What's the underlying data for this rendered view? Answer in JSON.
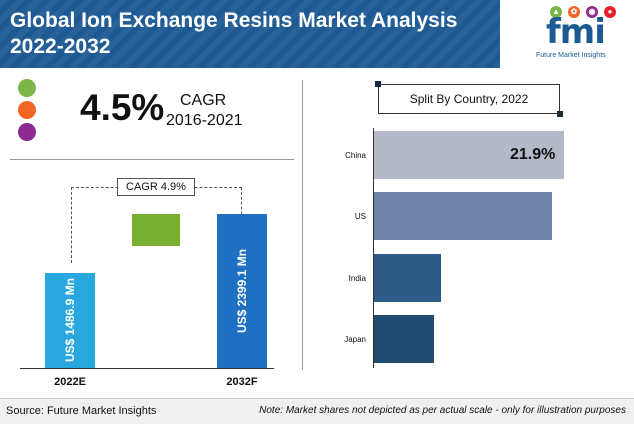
{
  "title": "Global Ion Exchange Resins Market Analysis 2022-2032",
  "logo": {
    "text": "fmi",
    "subtitle": "Future Market Insights"
  },
  "legend_dot_colors": [
    "#7ab648",
    "#f26522",
    "#8e2a8e"
  ],
  "highlight": {
    "value": "4.5%",
    "label": "CAGR",
    "period": "2016-2021"
  },
  "forecast_cagr_label": "CAGR  4.9%",
  "split_title": "Split By Country, 2022",
  "footer": {
    "source": "Source: Future Market Insights",
    "note": "Note: Market shares not depicted as per actual scale - only for illustration purposes"
  },
  "chart_data": [
    {
      "type": "bar",
      "categories": [
        "2022E",
        "2032F"
      ],
      "values": [
        1486.9,
        2399.1
      ],
      "value_labels": [
        "US$ 1486.9 Mn",
        "US$ 2399.1 Mn"
      ],
      "colors": [
        "#29a8e0",
        "#1f6fc3"
      ],
      "connector_color": "#7ab032"
    },
    {
      "type": "bar",
      "orientation": "horizontal",
      "categories": [
        "China",
        "US",
        "India",
        "Japan"
      ],
      "values": [
        21.9,
        20.5,
        7.7,
        6.9
      ],
      "value_labels": [
        "21.9%",
        "",
        "",
        ""
      ],
      "colors": [
        "#b4b9c8",
        "#6e84a6",
        "#2d5a86",
        "#214b6e"
      ]
    }
  ]
}
